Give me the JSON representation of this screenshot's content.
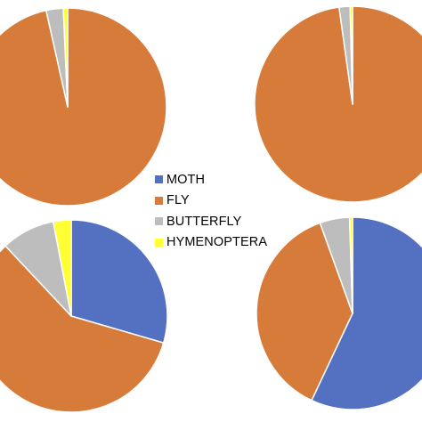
{
  "legend": {
    "items": [
      {
        "label": "MOTH",
        "color": "#5470C0"
      },
      {
        "label": "FLY",
        "color": "#D77B3A"
      },
      {
        "label": "BUTTERFLY",
        "color": "#BDBDBD"
      },
      {
        "label": "HYMENOPTERA",
        "color": "#FFFF33"
      }
    ]
  },
  "chart_data": [
    {
      "type": "pie",
      "position": "top-left",
      "categories": [
        "MOTH",
        "FLY",
        "BUTTERFLY",
        "HYMENOPTERA"
      ],
      "values": [
        0,
        96.5,
        2.8,
        0.7
      ],
      "colors": [
        "#5470C0",
        "#D77B3A",
        "#BDBDBD",
        "#FFFF33"
      ],
      "start_angle_deg": 0,
      "direction": "clockwise"
    },
    {
      "type": "pie",
      "position": "top-right",
      "categories": [
        "MOTH",
        "FLY",
        "BUTTERFLY",
        "HYMENOPTERA"
      ],
      "values": [
        0,
        97.8,
        1.8,
        0.4
      ],
      "colors": [
        "#5470C0",
        "#D77B3A",
        "#BDBDBD",
        "#FFFF33"
      ],
      "start_angle_deg": 0,
      "direction": "clockwise"
    },
    {
      "type": "pie",
      "position": "bottom-left",
      "categories": [
        "MOTH",
        "FLY",
        "BUTTERFLY",
        "HYMENOPTERA"
      ],
      "values": [
        29.5,
        58.5,
        9.0,
        3.0
      ],
      "colors": [
        "#5470C0",
        "#D77B3A",
        "#BDBDBD",
        "#FFFF33"
      ],
      "start_angle_deg": 0,
      "direction": "clockwise"
    },
    {
      "type": "pie",
      "position": "bottom-right",
      "categories": [
        "MOTH",
        "FLY",
        "BUTTERFLY",
        "HYMENOPTERA"
      ],
      "values": [
        57.0,
        37.5,
        5.0,
        0.5
      ],
      "colors": [
        "#5470C0",
        "#D77B3A",
        "#BDBDBD",
        "#FFFF33"
      ],
      "start_angle_deg": 0,
      "direction": "clockwise"
    }
  ]
}
